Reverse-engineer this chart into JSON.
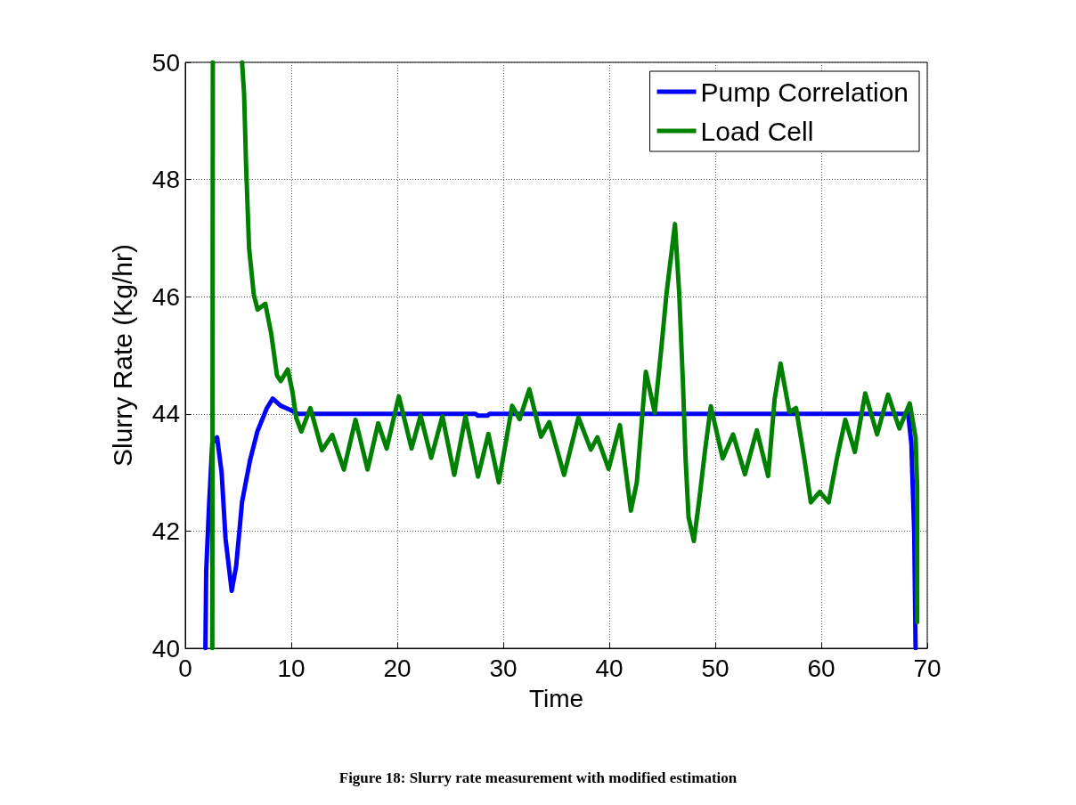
{
  "chart_data": {
    "type": "line",
    "xlabel": "Time",
    "ylabel": "Slurry Rate (Kg/hr)",
    "annotations": [
      "Figure 18: Slurry rate measurement with modified estimation"
    ],
    "xlim": [
      0,
      70
    ],
    "xticks": [
      0,
      10,
      20,
      30,
      40,
      50,
      60,
      70
    ],
    "ylim": [
      40,
      50
    ],
    "yticks": [
      40,
      42,
      44,
      46,
      48,
      50
    ],
    "grid": true,
    "legend": "top right",
    "marker": "none",
    "line_style": "solid",
    "series": [
      {
        "name": "Pump Correlation",
        "color": "#0000ff",
        "x": [
          1.9,
          1.97,
          2.26,
          2.55,
          3.0,
          3.43,
          3.8,
          4.38,
          4.8,
          5.36,
          6.1,
          6.8,
          7.7,
          8.25,
          9.0,
          9.9,
          10.6,
          27.4,
          27.6,
          28.5,
          28.7,
          68.2,
          68.5,
          68.77,
          68.9
        ],
        "values": [
          40,
          41.3,
          42.5,
          43.5,
          43.6,
          43.0,
          41.87,
          40.98,
          41.4,
          42.5,
          43.2,
          43.7,
          44.1,
          44.26,
          44.14,
          44.07,
          44.0,
          44.0,
          43.97,
          43.97,
          44.0,
          44.0,
          43.5,
          41.98,
          40.0
        ]
      },
      {
        "name": "Load Cell",
        "color": "#008000",
        "x": [
          2.55,
          2.6,
          4.0,
          5.36,
          5.55,
          5.73,
          6.02,
          6.46,
          6.82,
          7.55,
          8.1,
          8.65,
          9.0,
          9.67,
          10.1,
          10.47,
          10.95,
          11.8,
          12.9,
          13.87,
          14.96,
          16.06,
          17.2,
          18.2,
          19.0,
          20.15,
          21.35,
          22.2,
          23.2,
          24.26,
          25.38,
          26.44,
          27.62,
          28.6,
          29.58,
          30.84,
          31.54,
          32.46,
          33.56,
          34.34,
          35.74,
          37.09,
          38.26,
          38.88,
          39.94,
          41.0,
          42.04,
          42.6,
          43.45,
          44.29,
          44.9,
          45.4,
          46.2,
          46.6,
          46.95,
          47.2,
          47.48,
          47.98,
          48.46,
          49.02,
          49.58,
          50.7,
          51.68,
          52.8,
          53.92,
          54.99,
          55.6,
          56.16,
          57.0,
          57.62,
          58.4,
          59.02,
          59.86,
          60.7,
          61.48,
          62.27,
          63.17,
          64.15,
          65.27,
          66.3,
          67.37,
          68.35,
          68.9,
          69.05,
          69.05
        ],
        "values": [
          40,
          50,
          null,
          50,
          49.46,
          48.28,
          46.83,
          46.04,
          45.78,
          45.88,
          45.38,
          44.66,
          44.56,
          44.76,
          44.39,
          43.93,
          43.7,
          44.1,
          43.38,
          43.64,
          43.05,
          43.9,
          43.05,
          43.84,
          43.41,
          44.3,
          43.41,
          43.97,
          43.25,
          43.96,
          42.96,
          43.96,
          42.93,
          43.66,
          42.83,
          44.14,
          43.91,
          44.42,
          43.61,
          43.86,
          42.96,
          43.94,
          43.39,
          43.6,
          43.06,
          43.81,
          42.35,
          42.83,
          44.72,
          44.02,
          45.1,
          46.05,
          47.24,
          46.05,
          44.53,
          43.24,
          42.24,
          41.83,
          42.49,
          43.35,
          44.13,
          43.24,
          43.65,
          42.97,
          43.72,
          42.94,
          44.25,
          44.86,
          44.03,
          44.1,
          43.24,
          42.49,
          42.67,
          42.49,
          43.24,
          43.9,
          43.35,
          44.35,
          43.65,
          44.33,
          43.75,
          44.18,
          43.6,
          42.74,
          40.45
        ]
      }
    ]
  }
}
